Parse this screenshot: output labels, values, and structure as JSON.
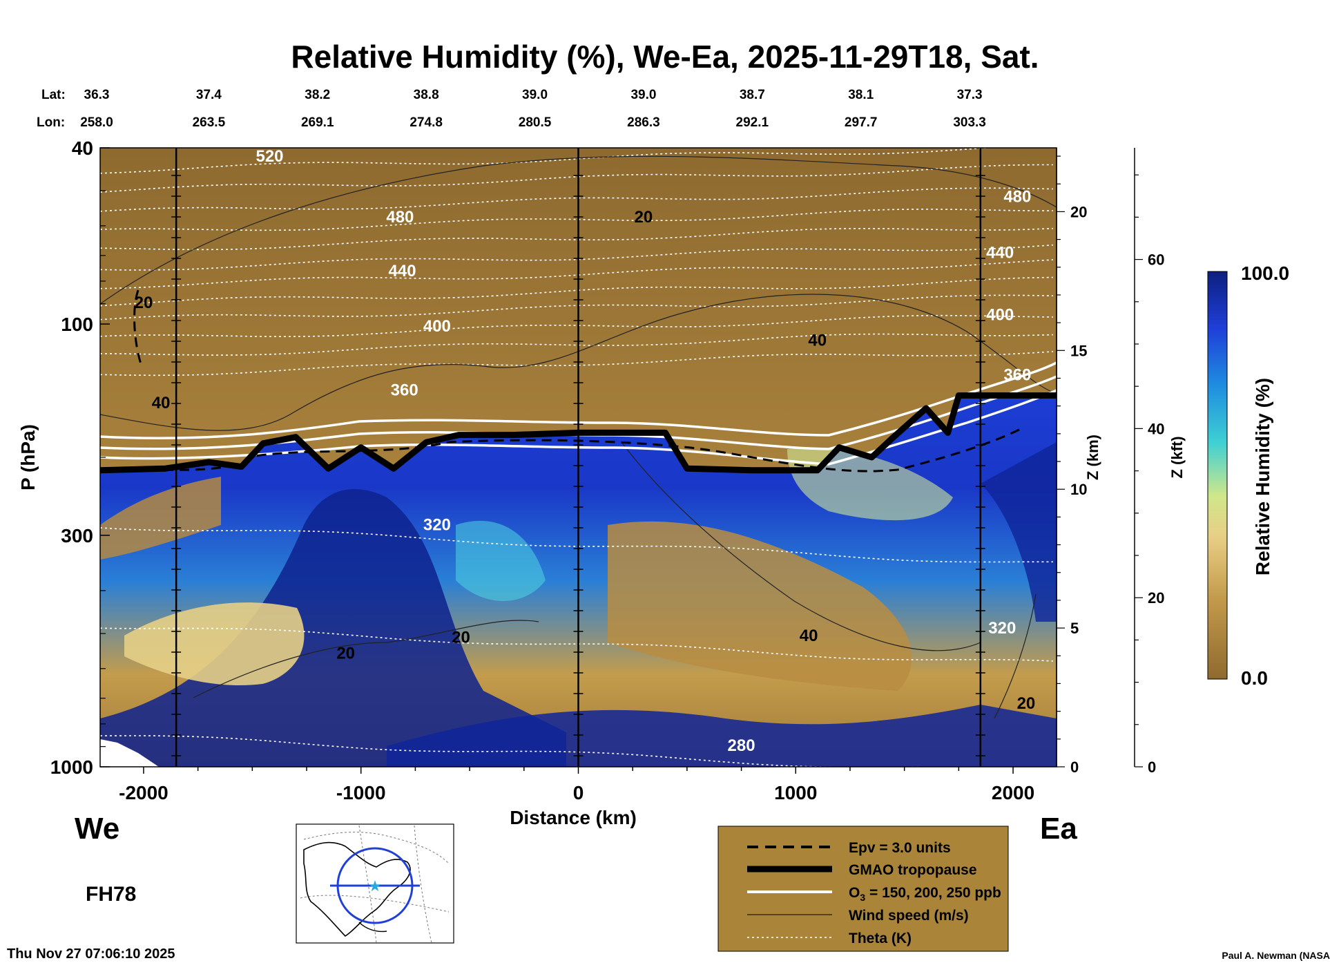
{
  "chart_data": {
    "type": "heatmap",
    "title": "Relative Humidity (%), We-Ea, 2025-11-29T18, Sat.",
    "xlabel": "Distance (km)",
    "ylabel": "P (hPa)",
    "xlim": [
      -2200,
      2200
    ],
    "ylim": [
      1000,
      40
    ],
    "y_scale": "log",
    "x_ticks": [
      -2000,
      -1000,
      0,
      1000,
      2000
    ],
    "x_tick_labels": [
      "-2000",
      "-1000",
      "0",
      "1000",
      "2000"
    ],
    "y_ticks": [
      40,
      100,
      300,
      1000
    ],
    "y_tick_labels": [
      "40",
      "100",
      "300",
      "1000"
    ],
    "lat_label": "Lat:",
    "lon_label": "Lon:",
    "lat_lon_columns": [
      {
        "distance": -2200,
        "lat": "36.3",
        "lon": "258.0"
      },
      {
        "distance": -1700,
        "lat": "37.4",
        "lon": "263.5"
      },
      {
        "distance": -1200,
        "lat": "38.2",
        "lon": "269.1"
      },
      {
        "distance": -700,
        "lat": "38.8",
        "lon": "274.8"
      },
      {
        "distance": -200,
        "lat": "39.0",
        "lon": "280.5"
      },
      {
        "distance": 300,
        "lat": "39.0",
        "lon": "286.3"
      },
      {
        "distance": 800,
        "lat": "38.7",
        "lon": "292.1"
      },
      {
        "distance": 1300,
        "lat": "38.1",
        "lon": "297.7"
      },
      {
        "distance": 1800,
        "lat": "37.3",
        "lon": "303.3"
      }
    ],
    "z_km_axis": {
      "label": "Z (km)",
      "ticks": [
        0,
        5,
        10,
        15,
        20
      ],
      "tick_labels": [
        "0",
        "5",
        "10",
        "15",
        "20"
      ]
    },
    "z_kft_axis": {
      "label": "Z (kft)",
      "ticks": [
        0,
        20,
        40,
        60
      ],
      "tick_labels": [
        "0",
        "20",
        "40",
        "60"
      ]
    },
    "colorbar": {
      "label": "Relative Humidity (%)",
      "min": 0.0,
      "max": 100.0,
      "min_label": "0.0",
      "max_label": "100.0"
    },
    "vertical_markers_km": [
      -1850,
      0,
      1850
    ],
    "tropopause_hPa": [
      [
        -2200,
        214
      ],
      [
        -1900,
        212
      ],
      [
        -1700,
        205
      ],
      [
        -1550,
        210
      ],
      [
        -1450,
        186
      ],
      [
        -1300,
        180
      ],
      [
        -1150,
        212
      ],
      [
        -1000,
        190
      ],
      [
        -850,
        212
      ],
      [
        -700,
        185
      ],
      [
        -550,
        178
      ],
      [
        -300,
        178
      ],
      [
        0,
        176
      ],
      [
        400,
        176
      ],
      [
        500,
        212
      ],
      [
        800,
        214
      ],
      [
        1100,
        214
      ],
      [
        1200,
        190
      ],
      [
        1350,
        200
      ],
      [
        1450,
        180
      ],
      [
        1600,
        155
      ],
      [
        1700,
        176
      ],
      [
        1750,
        145
      ],
      [
        2200,
        145
      ]
    ],
    "rh_regions": [
      {
        "name": "stratosphere",
        "rh_percent": 10
      },
      {
        "name": "upper-troposphere-moist",
        "rh_percent": 90
      },
      {
        "name": "lower-troposphere-dry",
        "rh_percent": 25
      },
      {
        "name": "boundary-layer-moist",
        "rh_percent": 95
      }
    ],
    "theta_labels": [
      {
        "label": "520",
        "x": -1420,
        "p": 43
      },
      {
        "label": "480",
        "x": -820,
        "p": 59
      },
      {
        "label": "440",
        "x": -810,
        "p": 78
      },
      {
        "label": "400",
        "x": -650,
        "p": 104
      },
      {
        "label": "360",
        "x": -800,
        "p": 145
      },
      {
        "label": "320",
        "x": -650,
        "p": 292
      },
      {
        "label": "280",
        "x": 750,
        "p": 920
      },
      {
        "label": "480",
        "x": 2020,
        "p": 53
      },
      {
        "label": "440",
        "x": 1940,
        "p": 71
      },
      {
        "label": "400",
        "x": 1940,
        "p": 98
      },
      {
        "label": "360",
        "x": 2020,
        "p": 134
      },
      {
        "label": "320",
        "x": 1950,
        "p": 500
      }
    ],
    "wind_labels": [
      {
        "label": "20",
        "x": 300,
        "p": 59
      },
      {
        "label": "40",
        "x": 1100,
        "p": 112
      },
      {
        "label": "40",
        "x": -1920,
        "p": 155
      },
      {
        "label": "40",
        "x": 1060,
        "p": 520
      },
      {
        "label": "20",
        "x": -540,
        "p": 525
      },
      {
        "label": "20",
        "x": -1070,
        "p": 570
      },
      {
        "label": "20",
        "x": 2060,
        "p": 740
      },
      {
        "label": "20",
        "x": -2000,
        "p": 92
      }
    ],
    "legend": [
      {
        "label": "Epv = 3.0 units",
        "style": "dashed-black"
      },
      {
        "label": "GMAO tropopause",
        "style": "thick-black"
      },
      {
        "label": "O",
        "subscript": "3",
        "label_rest": " = 150, 200, 250 ppb",
        "style": "white"
      },
      {
        "label": "Wind speed (m/s)",
        "style": "thin-black"
      },
      {
        "label": "Theta (K)",
        "style": "dotted-white"
      }
    ],
    "colors": {
      "dry": "#8f6a2e",
      "mid_dry": "#c9a24e",
      "light": "#e7d08a",
      "cyan": "#39c8d9",
      "blue": "#1f45d9",
      "navy": "#0d1f8a",
      "legend_bg": "#a98439"
    }
  },
  "annotations": {
    "west": "We",
    "east": "Ea",
    "forecast_hour": "FH78",
    "timestamp": "Thu Nov 27 07:06:10 2025",
    "credit": "Paul A. Newman (NASA"
  }
}
